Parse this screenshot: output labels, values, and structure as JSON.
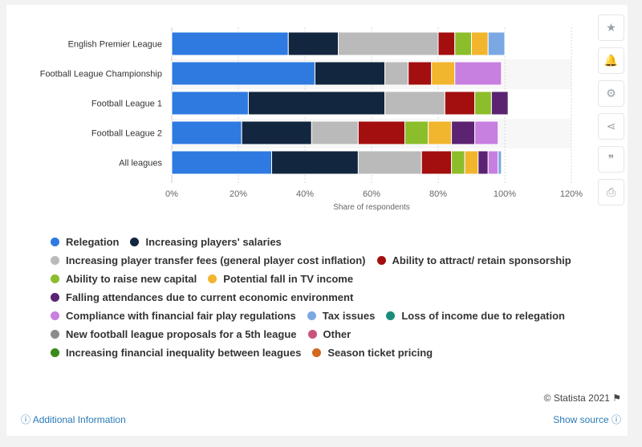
{
  "chart_data": {
    "type": "bar",
    "orientation": "horizontal",
    "stacked": true,
    "categories": [
      "English Premier League",
      "Football League Championship",
      "Football League 1",
      "Football League 2",
      "All leagues"
    ],
    "series": [
      {
        "name": "Relegation",
        "color": "#2e7ae0",
        "values": [
          35,
          43,
          23,
          21,
          30
        ]
      },
      {
        "name": "Increasing players' salaries",
        "color": "#12263f",
        "values": [
          15,
          21,
          41,
          21,
          26
        ]
      },
      {
        "name": "Increasing player transfer fees (general player cost inflation)",
        "color": "#bababa",
        "values": [
          30,
          7,
          18,
          14,
          19
        ]
      },
      {
        "name": "Ability to attract/ retain sponsorship",
        "color": "#a30f0f",
        "values": [
          5,
          7,
          9,
          14,
          9
        ]
      },
      {
        "name": "Ability to raise new capital",
        "color": "#8cbd2b",
        "values": [
          5,
          0,
          5,
          7,
          4
        ]
      },
      {
        "name": "Potential fall in TV income",
        "color": "#f2b52e",
        "values": [
          5,
          7,
          0,
          7,
          4
        ]
      },
      {
        "name": "Falling attendances due to current economic environment",
        "color": "#5b2371",
        "values": [
          0,
          0,
          5,
          7,
          3
        ]
      },
      {
        "name": "Compliance with financial fair play regulations",
        "color": "#c77fe0",
        "values": [
          0,
          14,
          0,
          7,
          3
        ]
      },
      {
        "name": "Tax issues",
        "color": "#7ba8e2",
        "values": [
          5,
          0,
          0,
          0,
          1
        ]
      },
      {
        "name": "Loss of income due to relegation",
        "color": "#1a8c7a",
        "values": [
          0,
          0,
          0,
          0,
          0
        ]
      },
      {
        "name": "New football league proposals for a 5th league",
        "color": "#8c8c8c",
        "values": [
          0,
          0,
          0,
          0,
          0
        ]
      },
      {
        "name": "Other",
        "color": "#c9547a",
        "values": [
          0,
          0,
          0,
          0,
          0
        ]
      },
      {
        "name": "Increasing financial inequality between leagues",
        "color": "#3a8c1a",
        "values": [
          0,
          0,
          0,
          0,
          0
        ]
      },
      {
        "name": "Season ticket pricing",
        "color": "#d2691e",
        "values": [
          0,
          0,
          0,
          0,
          0
        ]
      }
    ],
    "xlim": [
      0,
      120
    ],
    "xticks": [
      "0%",
      "20%",
      "40%",
      "60%",
      "80%",
      "100%",
      "120%"
    ],
    "xlabel": "Share of respondents",
    "ylabel": "",
    "grid": true,
    "legend_position": "bottom"
  },
  "legend_rows": [
    [
      0,
      1
    ],
    [
      2,
      3
    ],
    [
      4,
      5
    ],
    [
      6
    ],
    [
      7,
      8,
      9
    ],
    [
      10,
      11
    ],
    [
      12,
      13
    ]
  ],
  "tools": [
    {
      "name": "star-icon",
      "glyph": "★"
    },
    {
      "name": "bell-icon",
      "glyph": "🔔"
    },
    {
      "name": "gear-icon",
      "glyph": "⚙"
    },
    {
      "name": "share-icon",
      "glyph": "⋖"
    },
    {
      "name": "quote-icon",
      "glyph": "❞"
    },
    {
      "name": "print-icon",
      "glyph": "⎙"
    }
  ],
  "footer": {
    "credit": "© Statista 2021",
    "additional_info": "Additional Information",
    "show_source": "Show source"
  }
}
